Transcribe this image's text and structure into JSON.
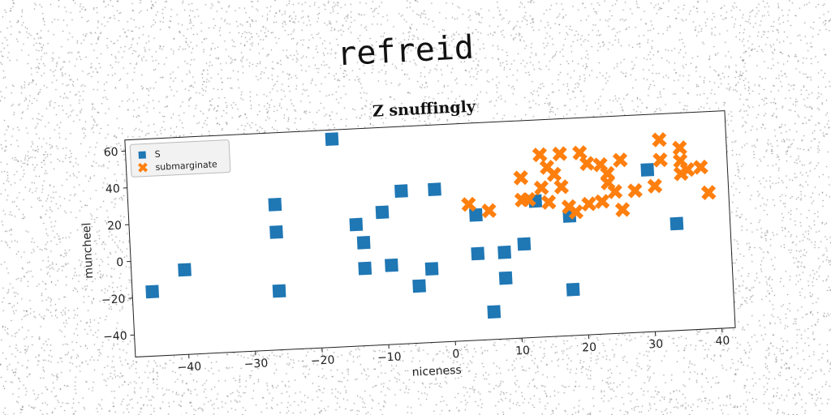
{
  "overlay_text": "refreid",
  "chart_data": {
    "type": "scatter",
    "title": "Z snuffingly",
    "xlabel": "niceness",
    "ylabel": "muncheel",
    "xlim": [
      -48,
      42
    ],
    "ylim": [
      -52,
      66
    ],
    "xticks": [
      -40,
      -30,
      -20,
      -10,
      0,
      10,
      20,
      30,
      40
    ],
    "yticks": [
      -40,
      -20,
      0,
      20,
      40,
      60
    ],
    "grid": false,
    "legend_position": "top-left",
    "series": [
      {
        "name": "S",
        "marker": "square",
        "color": "#1f77b4",
        "points": [
          [
            -17,
            61
          ],
          [
            -26,
            27
          ],
          [
            -26,
            12
          ],
          [
            -7,
            31
          ],
          [
            -2,
            31
          ],
          [
            -14,
            14
          ],
          [
            -13,
            4
          ],
          [
            -10,
            20
          ],
          [
            -13,
            -10
          ],
          [
            -9,
            -9
          ],
          [
            -3,
            -12
          ],
          [
            -5,
            -21
          ],
          [
            -26,
            -20
          ],
          [
            -40,
            -6
          ],
          [
            -45,
            -17
          ],
          [
            4,
            16
          ],
          [
            4,
            -5
          ],
          [
            8,
            -5
          ],
          [
            11,
            -1
          ],
          [
            8,
            -19
          ],
          [
            6,
            -37
          ],
          [
            18,
            -27
          ],
          [
            13,
            22
          ],
          [
            18,
            13
          ],
          [
            30,
            36
          ],
          [
            34,
            6
          ]
        ]
      },
      {
        "name": "submarginate",
        "marker": "x",
        "color": "#ff7f0e",
        "points": [
          [
            14,
            47
          ],
          [
            17,
            47
          ],
          [
            20,
            47
          ],
          [
            15,
            40
          ],
          [
            21,
            41
          ],
          [
            16,
            36
          ],
          [
            11,
            35
          ],
          [
            14,
            29
          ],
          [
            17,
            29
          ],
          [
            12,
            23
          ],
          [
            15,
            21
          ],
          [
            18,
            18
          ],
          [
            19,
            15
          ],
          [
            21,
            19
          ],
          [
            11,
            23
          ],
          [
            3,
            22
          ],
          [
            6,
            18
          ],
          [
            23,
            40
          ],
          [
            26,
            42
          ],
          [
            24,
            35
          ],
          [
            24,
            30
          ],
          [
            25,
            25
          ],
          [
            28,
            25
          ],
          [
            26,
            15
          ],
          [
            23,
            20
          ],
          [
            31,
            27
          ],
          [
            32,
            52
          ],
          [
            35,
            47
          ],
          [
            32,
            41
          ],
          [
            35,
            40
          ],
          [
            36,
            35
          ],
          [
            38,
            36
          ],
          [
            35,
            33
          ],
          [
            39,
            22
          ]
        ]
      }
    ]
  }
}
